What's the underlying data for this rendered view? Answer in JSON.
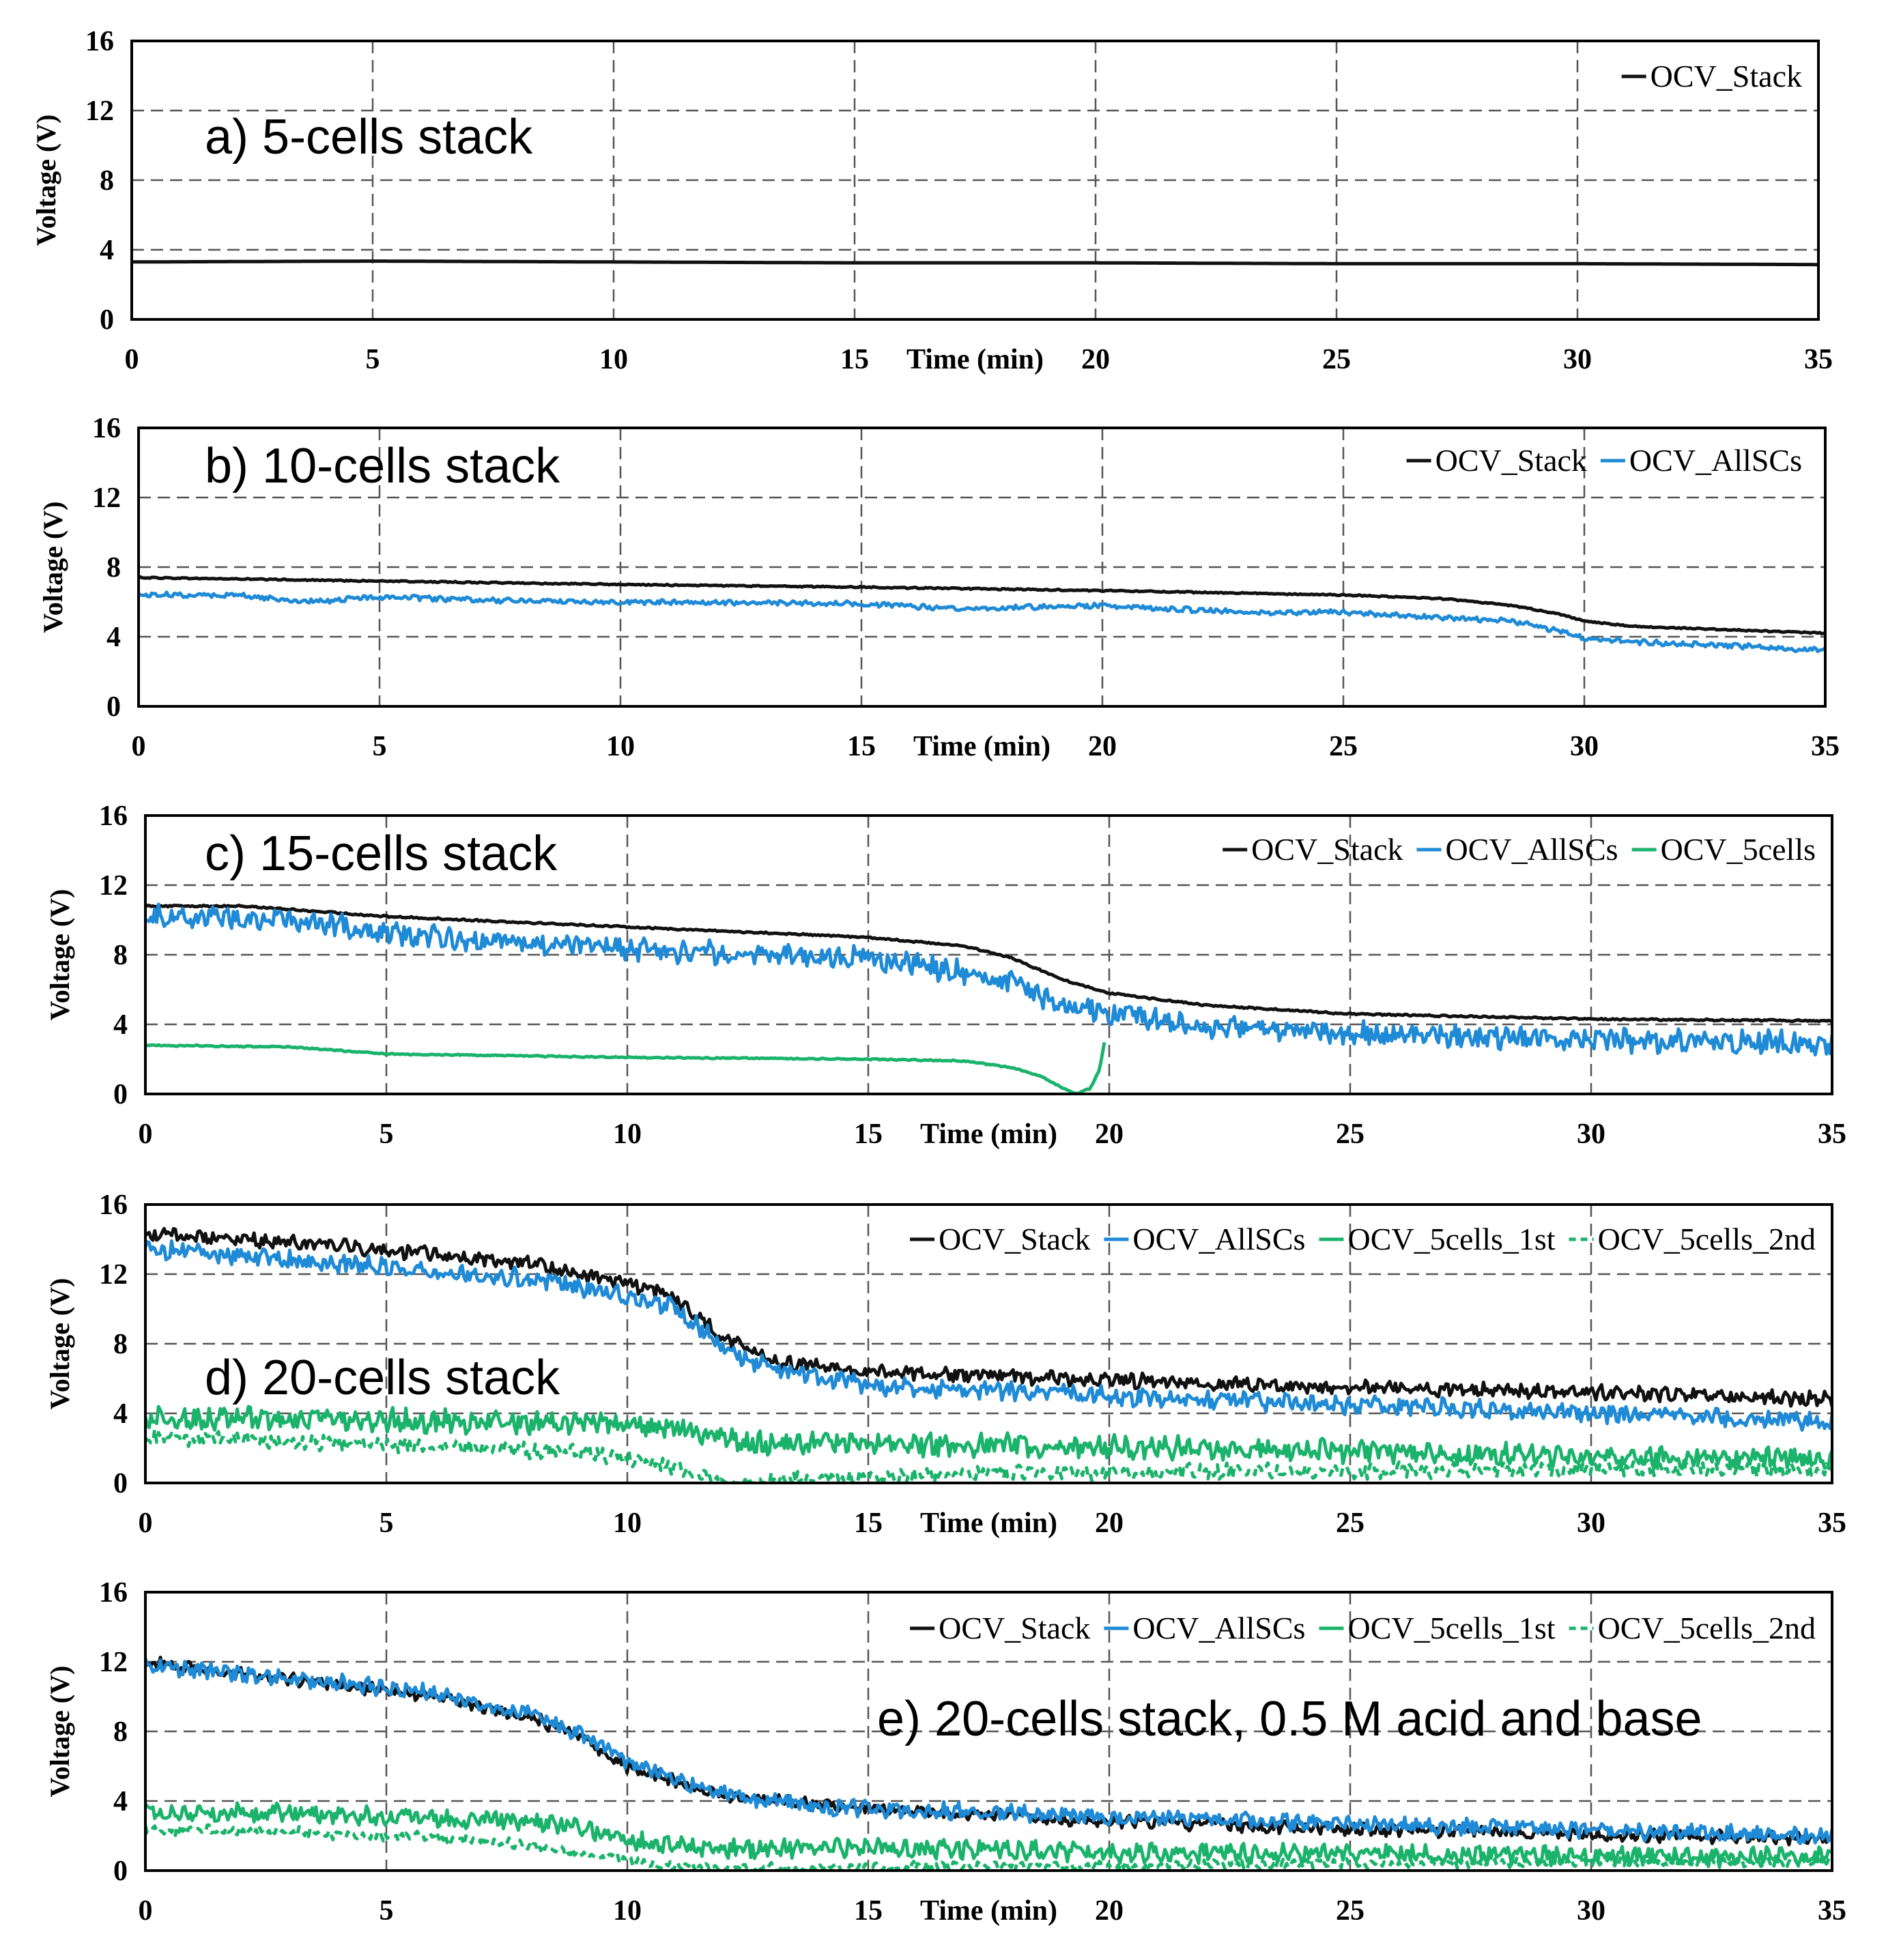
{
  "chart_data": [
    {
      "type": "line",
      "title": "a) 5-cells stack",
      "xlabel": "Time (min)",
      "ylabel": "Voltage (V)",
      "xlim": [
        0,
        35
      ],
      "ylim": [
        0,
        16
      ],
      "xticks": [
        "0",
        "5",
        "10",
        "15",
        "20",
        "25",
        "30",
        "35"
      ],
      "yticks": [
        "0",
        "4",
        "8",
        "12",
        "16"
      ],
      "grid": true,
      "legend_position": "top-right",
      "series": [
        {
          "name": "OCV_Stack",
          "color": "#111111",
          "dashed": false,
          "noise": 0,
          "x": [
            0,
            5,
            10,
            15,
            20,
            25,
            30,
            35
          ],
          "y": [
            3.3,
            3.35,
            3.3,
            3.25,
            3.25,
            3.2,
            3.2,
            3.15
          ]
        }
      ]
    },
    {
      "type": "line",
      "title": "b) 10-cells stack",
      "xlabel": "Time (min)",
      "ylabel": "Voltage (V)",
      "xlim": [
        0,
        35
      ],
      "ylim": [
        0,
        16
      ],
      "xticks": [
        "0",
        "5",
        "10",
        "15",
        "20",
        "25",
        "30",
        "35"
      ],
      "yticks": [
        "0",
        "4",
        "8",
        "12",
        "16"
      ],
      "grid": true,
      "legend_position": "top-right",
      "series": [
        {
          "name": "OCV_Stack",
          "color": "#111111",
          "dashed": false,
          "noise": 0.03,
          "x": [
            0,
            5,
            10,
            15,
            20,
            25,
            27,
            28.5,
            29.5,
            30,
            31,
            33,
            35
          ],
          "y": [
            7.4,
            7.2,
            7.0,
            6.85,
            6.65,
            6.4,
            6.2,
            5.8,
            5.3,
            4.9,
            4.6,
            4.4,
            4.2
          ]
        },
        {
          "name": "OCV_AllSCs",
          "color": "#1f8ad6",
          "dashed": false,
          "noise": 0.12,
          "x": [
            0,
            2,
            3.5,
            5,
            7,
            10,
            15,
            17,
            20,
            23,
            25,
            27,
            28.5,
            29.5,
            30,
            31,
            33,
            35
          ],
          "y": [
            6.4,
            6.4,
            6.0,
            6.3,
            6.1,
            6.0,
            5.9,
            5.6,
            5.8,
            5.4,
            5.4,
            5.1,
            4.9,
            4.3,
            3.9,
            3.7,
            3.5,
            3.2
          ]
        }
      ]
    },
    {
      "type": "line",
      "title": "c) 15-cells stack",
      "xlabel": "Time (min)",
      "ylabel": "Voltage (V)",
      "xlim": [
        0,
        35
      ],
      "ylim": [
        0,
        16
      ],
      "xticks": [
        "0",
        "5",
        "10",
        "15",
        "20",
        "25",
        "30",
        "35"
      ],
      "yticks": [
        "0",
        "4",
        "8",
        "12",
        "16"
      ],
      "grid": true,
      "legend_position": "top-right",
      "series": [
        {
          "name": "OCV_Stack",
          "color": "#111111",
          "dashed": false,
          "noise": 0.04,
          "x": [
            0,
            2,
            5,
            10,
            15,
            17,
            18,
            19,
            20,
            22,
            25,
            30,
            35
          ],
          "y": [
            10.8,
            10.8,
            10.2,
            9.6,
            9.0,
            8.5,
            7.8,
            6.6,
            5.8,
            5.1,
            4.6,
            4.3,
            4.2
          ]
        },
        {
          "name": "OCV_AllSCs",
          "color": "#1f8ad6",
          "dashed": false,
          "noise": 0.55,
          "x": [
            0,
            3,
            5,
            6,
            10,
            15,
            17,
            18,
            19,
            20,
            22,
            25,
            30,
            35
          ],
          "y": [
            10.3,
            10.0,
            9.3,
            9.0,
            8.3,
            7.8,
            7.0,
            6.3,
            5.2,
            4.6,
            3.9,
            3.5,
            3.1,
            2.9
          ]
        },
        {
          "name": "OCV_5cells",
          "color": "#1bb36b",
          "dashed": false,
          "noise": 0.03,
          "x": [
            0,
            3,
            5,
            10,
            15,
            17,
            18,
            18.6,
            19,
            19.3,
            19.6,
            19.8,
            19.9
          ],
          "y": [
            2.8,
            2.7,
            2.3,
            2.1,
            2.0,
            1.9,
            1.5,
            1.0,
            0.4,
            0.0,
            0.3,
            1.4,
            3.0
          ]
        }
      ]
    },
    {
      "type": "line",
      "title": "d) 20-cells stack",
      "xlabel": "Time (min)",
      "ylabel": "Voltage (V)",
      "xlim": [
        0,
        35
      ],
      "ylim": [
        0,
        16
      ],
      "xticks": [
        "0",
        "5",
        "10",
        "15",
        "20",
        "25",
        "30",
        "35"
      ],
      "yticks": [
        "0",
        "4",
        "8",
        "12",
        "16"
      ],
      "grid": true,
      "legend_position": "top-right",
      "series": [
        {
          "name": "OCV_Stack",
          "color": "#111111",
          "dashed": false,
          "noise": 0.35,
          "x": [
            0,
            2,
            5,
            8,
            10,
            11,
            12,
            13,
            15,
            20,
            25,
            30,
            35
          ],
          "y": [
            14.3,
            14.0,
            13.4,
            12.6,
            11.5,
            10.6,
            8.3,
            7.0,
            6.4,
            5.9,
            5.5,
            5.2,
            4.8
          ]
        },
        {
          "name": "OCV_AllSCs",
          "color": "#1f8ad6",
          "dashed": false,
          "noise": 0.45,
          "x": [
            0,
            2,
            5,
            8,
            10,
            11,
            12,
            13,
            15,
            20,
            25,
            30,
            35
          ],
          "y": [
            13.5,
            13.0,
            12.4,
            11.8,
            10.8,
            10.0,
            7.8,
            6.5,
            5.6,
            5.0,
            4.5,
            4.0,
            3.5
          ]
        },
        {
          "name": "OCV_5cells_1st",
          "color": "#1bb36b",
          "dashed": false,
          "noise": 0.55,
          "x": [
            0,
            5,
            10,
            11,
            11.8,
            12.3,
            15,
            20,
            25,
            30,
            35
          ],
          "y": [
            3.7,
            3.6,
            3.4,
            3.1,
            2.7,
            2.3,
            2.2,
            2.1,
            1.8,
            1.5,
            1.4
          ]
        },
        {
          "name": "OCV_5cells_2nd",
          "color": "#1bb36b",
          "dashed": true,
          "noise": 0.4,
          "x": [
            0,
            3,
            6,
            9,
            10,
            10.8,
            11.5,
            12,
            13,
            15,
            18,
            20,
            25,
            30,
            35
          ],
          "y": [
            2.6,
            2.4,
            2.1,
            1.8,
            1.5,
            1.0,
            0.4,
            0.05,
            0.1,
            0.3,
            0.6,
            0.6,
            0.7,
            0.8,
            0.8
          ]
        }
      ]
    },
    {
      "type": "line",
      "title": "e) 20-cells stack, 0.5 M acid and base",
      "xlabel": "Time (min)",
      "ylabel": "Voltage (V)",
      "xlim": [
        0,
        35
      ],
      "ylim": [
        0,
        16
      ],
      "xticks": [
        "0",
        "5",
        "10",
        "15",
        "20",
        "25",
        "30",
        "35"
      ],
      "yticks": [
        "0",
        "4",
        "8",
        "12",
        "16"
      ],
      "grid": true,
      "legend_position": "top-right",
      "series": [
        {
          "name": "OCV_Stack",
          "color": "#111111",
          "dashed": false,
          "noise": 0.3,
          "x": [
            0,
            2,
            4,
            6,
            8,
            9,
            10,
            11,
            12,
            14,
            16,
            18,
            20,
            25,
            30,
            35
          ],
          "y": [
            12.0,
            11.3,
            10.7,
            10.0,
            8.8,
            7.7,
            6.0,
            5.1,
            4.3,
            3.8,
            3.4,
            3.1,
            2.8,
            2.4,
            2.1,
            1.8
          ]
        },
        {
          "name": "OCV_AllSCs",
          "color": "#1f8ad6",
          "dashed": false,
          "noise": 0.4,
          "x": [
            0,
            2,
            4,
            6,
            8,
            9,
            10,
            11,
            12,
            14,
            16,
            18,
            20,
            25,
            30,
            35
          ],
          "y": [
            11.8,
            11.3,
            10.8,
            10.2,
            9.0,
            7.9,
            6.3,
            5.3,
            4.4,
            3.6,
            3.5,
            3.3,
            3.1,
            2.7,
            2.3,
            2.0
          ]
        },
        {
          "name": "OCV_5cells_1st",
          "color": "#1bb36b",
          "dashed": false,
          "noise": 0.45,
          "x": [
            0,
            3,
            6,
            8,
            9,
            10,
            11,
            12,
            14,
            16,
            18,
            20,
            25,
            30,
            35
          ],
          "y": [
            3.4,
            3.3,
            3.0,
            2.8,
            2.5,
            1.8,
            1.4,
            1.2,
            1.3,
            1.3,
            1.2,
            1.0,
            1.0,
            0.8,
            0.8
          ]
        },
        {
          "name": "OCV_5cells_2nd",
          "color": "#1bb36b",
          "dashed": true,
          "noise": 0.25,
          "x": [
            0,
            3,
            6,
            8,
            9,
            10,
            11,
            12,
            15,
            20,
            25,
            30,
            35
          ],
          "y": [
            2.4,
            2.2,
            1.9,
            1.5,
            1.0,
            0.6,
            0.3,
            0.1,
            0.2,
            0.3,
            0.4,
            0.5,
            0.5
          ]
        }
      ]
    }
  ]
}
